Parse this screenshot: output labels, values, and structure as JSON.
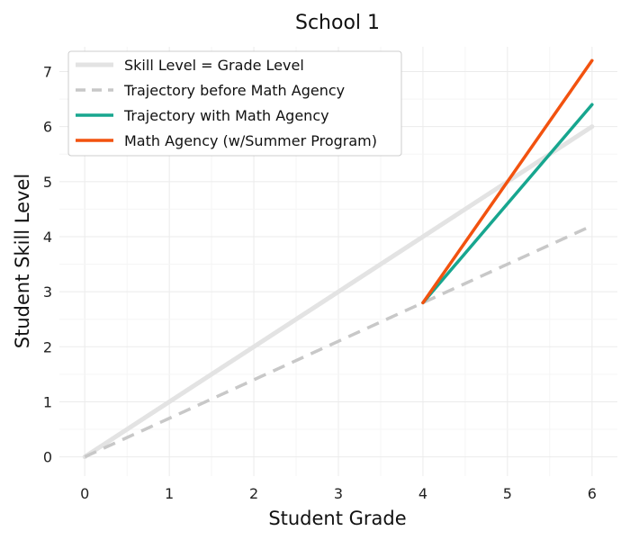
{
  "chart_data": {
    "type": "line",
    "title": "School 1",
    "xlabel": "Student Grade",
    "ylabel": "Student Skill Level",
    "xlim": [
      -0.3,
      6.3
    ],
    "ylim": [
      -0.35,
      7.45
    ],
    "xticks": [
      0,
      1,
      2,
      3,
      4,
      5,
      6
    ],
    "yticks": [
      0,
      1,
      2,
      3,
      4,
      5,
      6,
      7
    ],
    "grid": true,
    "legend_position": "top-left",
    "series": [
      {
        "name": "Skill Level = Grade Level",
        "x": [
          0,
          6
        ],
        "y": [
          0,
          6
        ],
        "color": "#e3e3e3",
        "style": "solid"
      },
      {
        "name": "Trajectory before Math Agency",
        "x": [
          0,
          6
        ],
        "y": [
          0,
          4.2
        ],
        "color": "#c8c8c8",
        "style": "dashed"
      },
      {
        "name": "Trajectory with Math Agency",
        "x": [
          4,
          6
        ],
        "y": [
          2.8,
          6.4
        ],
        "color": "#17a68f",
        "style": "solid"
      },
      {
        "name": "Math Agency (w/Summer Program)",
        "x": [
          4,
          6
        ],
        "y": [
          2.8,
          7.2
        ],
        "color": "#f2520f",
        "style": "solid"
      }
    ]
  }
}
